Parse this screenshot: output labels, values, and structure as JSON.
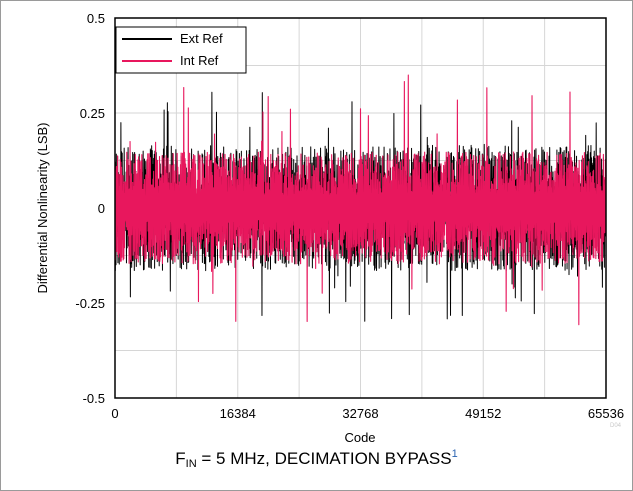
{
  "chart_data": {
    "type": "line",
    "title": "",
    "xlabel": "Code",
    "ylabel": "Differential Nonlinearity (LSB)",
    "xlim": [
      0,
      65536
    ],
    "ylim": [
      -0.5,
      0.5
    ],
    "xticks": [
      "0",
      "16384",
      "32768",
      "49152",
      "65536"
    ],
    "yticks": [
      "0.5",
      "0.25",
      "0",
      "-0.25",
      "-0.5"
    ],
    "grid": true,
    "legend_position": "top-left",
    "series": [
      {
        "name": "Ext Ref",
        "color": "#000000",
        "band_min": -0.32,
        "band_max": 0.31,
        "typical_min": -0.15,
        "typical_max": 0.15
      },
      {
        "name": "Int Ref",
        "color": "#e8175d",
        "band_min": -0.31,
        "band_max": 0.36,
        "typical_min": -0.13,
        "typical_max": 0.13
      }
    ]
  },
  "caption": {
    "prefix": "F",
    "subscript": "IN",
    "text": " = 5 MHz, DECIMATION BYPASS",
    "superscript": "1"
  },
  "figure_id": "D04"
}
